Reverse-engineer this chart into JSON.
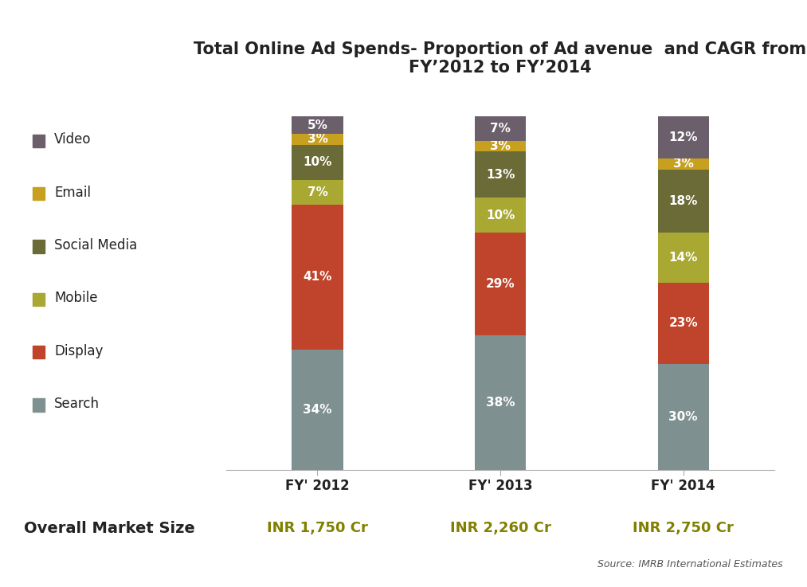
{
  "title": "Total Online Ad Spends- Proportion of Ad avenue  and CAGR from\nFY’2012 to FY’2014",
  "years": [
    "FY' 2012",
    "FY' 2013",
    "FY' 2014"
  ],
  "market_sizes": [
    "INR 1,750 Cr",
    "INR 2,260 Cr",
    "INR 2,750 Cr"
  ],
  "categories": [
    "Search",
    "Display",
    "Mobile",
    "Social Media",
    "Email",
    "Video"
  ],
  "colors": {
    "Search": "#7f9090",
    "Display": "#c0442b",
    "Mobile": "#a8a832",
    "Social Media": "#6b6b38",
    "Email": "#c8a020",
    "Video": "#6b5f6b"
  },
  "data": {
    "Search": [
      34,
      38,
      30
    ],
    "Display": [
      41,
      29,
      23
    ],
    "Mobile": [
      7,
      10,
      14
    ],
    "Social Media": [
      10,
      13,
      18
    ],
    "Email": [
      3,
      3,
      3
    ],
    "Video": [
      5,
      7,
      12
    ]
  },
  "bar_width": 0.28,
  "bar_positions": [
    1,
    2,
    3
  ],
  "background_color": "#ffffff",
  "source_text": "Source: IMRB International Estimates",
  "overall_market_label": "Overall Market Size",
  "market_color": "#808000",
  "title_fontsize": 15,
  "legend_fontsize": 12,
  "bar_label_fontsize": 11,
  "xtick_fontsize": 12,
  "overall_label_fontsize": 14,
  "market_size_fontsize": 13
}
